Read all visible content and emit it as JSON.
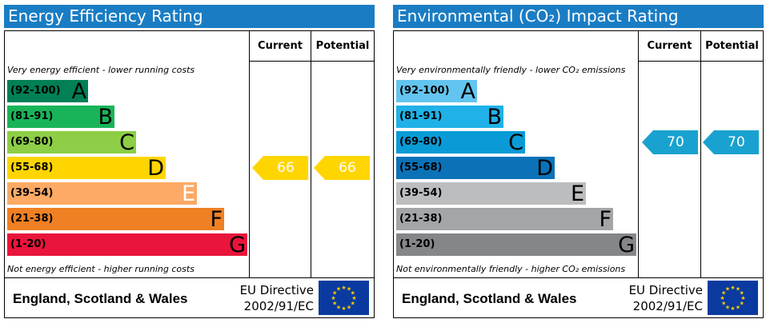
{
  "chart_data": [
    {
      "type": "bar",
      "title": "Energy Efficiency Rating",
      "columns": [
        "Current",
        "Potential"
      ],
      "top_note": "Very energy efficient - lower running costs",
      "bottom_note": "Not energy efficient - higher running costs",
      "bands": [
        {
          "range": "(92-100)",
          "letter": "A",
          "color": "#008054",
          "range_color": "#000000",
          "letter_color": "#000000"
        },
        {
          "range": "(81-91)",
          "letter": "B",
          "color": "#19b459",
          "range_color": "#000000",
          "letter_color": "#000000"
        },
        {
          "range": "(69-80)",
          "letter": "C",
          "color": "#8dce46",
          "range_color": "#000000",
          "letter_color": "#000000"
        },
        {
          "range": "(55-68)",
          "letter": "D",
          "color": "#ffd500",
          "range_color": "#000000",
          "letter_color": "#000000"
        },
        {
          "range": "(39-54)",
          "letter": "E",
          "color": "#fcaa65",
          "range_color": "#000000",
          "letter_color": "#ffffff"
        },
        {
          "range": "(21-38)",
          "letter": "F",
          "color": "#ef8023",
          "range_color": "#000000",
          "letter_color": "#000000"
        },
        {
          "range": "(1-20)",
          "letter": "G",
          "color": "#e9153b",
          "range_color": "#000000",
          "letter_color": "#000000"
        }
      ],
      "current": {
        "value": 66,
        "color": "#ffd500"
      },
      "potential": {
        "value": 66,
        "color": "#ffd500"
      },
      "footer": {
        "country": "England, Scotland & Wales",
        "directive_line1": "EU Directive",
        "directive_line2": "2002/91/EC"
      }
    },
    {
      "type": "bar",
      "title": "Environmental (CO₂) Impact Rating",
      "columns": [
        "Current",
        "Potential"
      ],
      "top_note": "Very environmentally friendly - lower CO₂ emissions",
      "bottom_note": "Not environmentally friendly - higher CO₂ emissions",
      "bands": [
        {
          "range": "(92-100)",
          "letter": "A",
          "color": "#63c5ef",
          "range_color": "#000000",
          "letter_color": "#000000"
        },
        {
          "range": "(81-91)",
          "letter": "B",
          "color": "#1fb1e7",
          "range_color": "#000000",
          "letter_color": "#000000"
        },
        {
          "range": "(69-80)",
          "letter": "C",
          "color": "#0a9bd7",
          "range_color": "#000000",
          "letter_color": "#000000"
        },
        {
          "range": "(55-68)",
          "letter": "D",
          "color": "#0b72b8",
          "range_color": "#000000",
          "letter_color": "#000000"
        },
        {
          "range": "(39-54)",
          "letter": "E",
          "color": "#bbbdbf",
          "range_color": "#000000",
          "letter_color": "#000000"
        },
        {
          "range": "(21-38)",
          "letter": "F",
          "color": "#a3a5a8",
          "range_color": "#000000",
          "letter_color": "#000000"
        },
        {
          "range": "(1-20)",
          "letter": "G",
          "color": "#858689",
          "range_color": "#000000",
          "letter_color": "#000000"
        }
      ],
      "current": {
        "value": 70,
        "color": "#19a2cf"
      },
      "potential": {
        "value": 70,
        "color": "#19a2cf"
      },
      "footer": {
        "country": "England, Scotland & Wales",
        "directive_line1": "EU Directive",
        "directive_line2": "2002/91/EC"
      }
    }
  ]
}
